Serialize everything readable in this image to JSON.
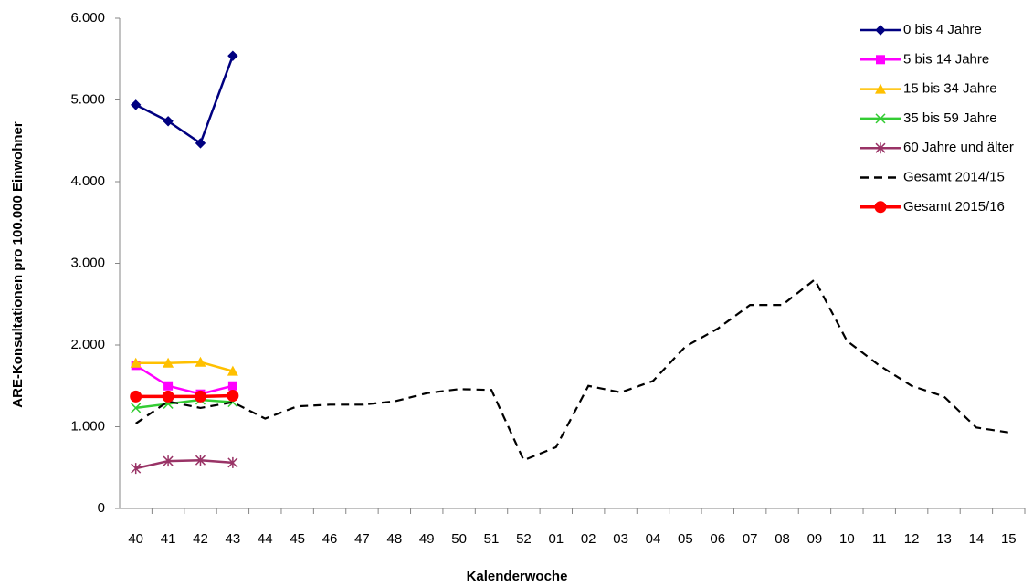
{
  "chart_data": {
    "type": "line",
    "x_label": "Kalenderwoche",
    "y_label": "ARE-Konsultationen pro 100.000 Einwohner",
    "categories": [
      "40",
      "41",
      "42",
      "43",
      "44",
      "45",
      "46",
      "47",
      "48",
      "49",
      "50",
      "51",
      "52",
      "01",
      "02",
      "03",
      "04",
      "05",
      "06",
      "07",
      "08",
      "09",
      "10",
      "11",
      "12",
      "13",
      "14",
      "15"
    ],
    "ylim": [
      0,
      6000
    ],
    "yticks": [
      0,
      {
        "value": 1000,
        "label": "1.000"
      },
      {
        "value": 2000,
        "label": "2.000"
      },
      {
        "value": 3000,
        "label": "3.000"
      },
      {
        "value": 4000,
        "label": "4.000"
      },
      {
        "value": 5000,
        "label": "5.000"
      },
      {
        "value": 6000,
        "label": "6.000"
      }
    ],
    "grid": false,
    "legend": "top-right",
    "series": [
      {
        "name": "0 bis 4 Jahre",
        "color": "#000080",
        "marker": "diamond",
        "values": [
          4940,
          4740,
          4470,
          5540,
          null,
          null,
          null,
          null,
          null,
          null,
          null,
          null,
          null,
          null,
          null,
          null,
          null,
          null,
          null,
          null,
          null,
          null,
          null,
          null,
          null,
          null,
          null,
          null
        ]
      },
      {
        "name": "5 bis 14 Jahre",
        "color": "#ff00ff",
        "marker": "square",
        "values": [
          1750,
          1500,
          1400,
          1500,
          null,
          null,
          null,
          null,
          null,
          null,
          null,
          null,
          null,
          null,
          null,
          null,
          null,
          null,
          null,
          null,
          null,
          null,
          null,
          null,
          null,
          null,
          null,
          null
        ]
      },
      {
        "name": "15 bis 34 Jahre",
        "color": "#ffc000",
        "marker": "triangle",
        "values": [
          1780,
          1780,
          1790,
          1680,
          null,
          null,
          null,
          null,
          null,
          null,
          null,
          null,
          null,
          null,
          null,
          null,
          null,
          null,
          null,
          null,
          null,
          null,
          null,
          null,
          null,
          null,
          null,
          null
        ]
      },
      {
        "name": "35 bis 59 Jahre",
        "color": "#33cc33",
        "marker": "x",
        "values": [
          1230,
          1280,
          1330,
          1300,
          null,
          null,
          null,
          null,
          null,
          null,
          null,
          null,
          null,
          null,
          null,
          null,
          null,
          null,
          null,
          null,
          null,
          null,
          null,
          null,
          null,
          null,
          null,
          null
        ]
      },
      {
        "name": "60 Jahre und älter",
        "color": "#993366",
        "marker": "star",
        "values": [
          490,
          580,
          590,
          560,
          null,
          null,
          null,
          null,
          null,
          null,
          null,
          null,
          null,
          null,
          null,
          null,
          null,
          null,
          null,
          null,
          null,
          null,
          null,
          null,
          null,
          null,
          null,
          null
        ]
      },
      {
        "name": "Gesamt 2014/15",
        "color": "#000000",
        "marker": "none",
        "dash": true,
        "values": [
          1040,
          1310,
          1230,
          1300,
          1100,
          1250,
          1270,
          1270,
          1310,
          1410,
          1460,
          1450,
          590,
          750,
          1500,
          1420,
          1560,
          1980,
          2200,
          2490,
          2490,
          2800,
          2050,
          1750,
          1500,
          1370,
          990,
          930
        ]
      },
      {
        "name": "Gesamt 2015/16",
        "color": "#ff0000",
        "marker": "circle",
        "values": [
          1370,
          1370,
          1370,
          1380,
          null,
          null,
          null,
          null,
          null,
          null,
          null,
          null,
          null,
          null,
          null,
          null,
          null,
          null,
          null,
          null,
          null,
          null,
          null,
          null,
          null,
          null,
          null,
          null
        ]
      }
    ]
  }
}
